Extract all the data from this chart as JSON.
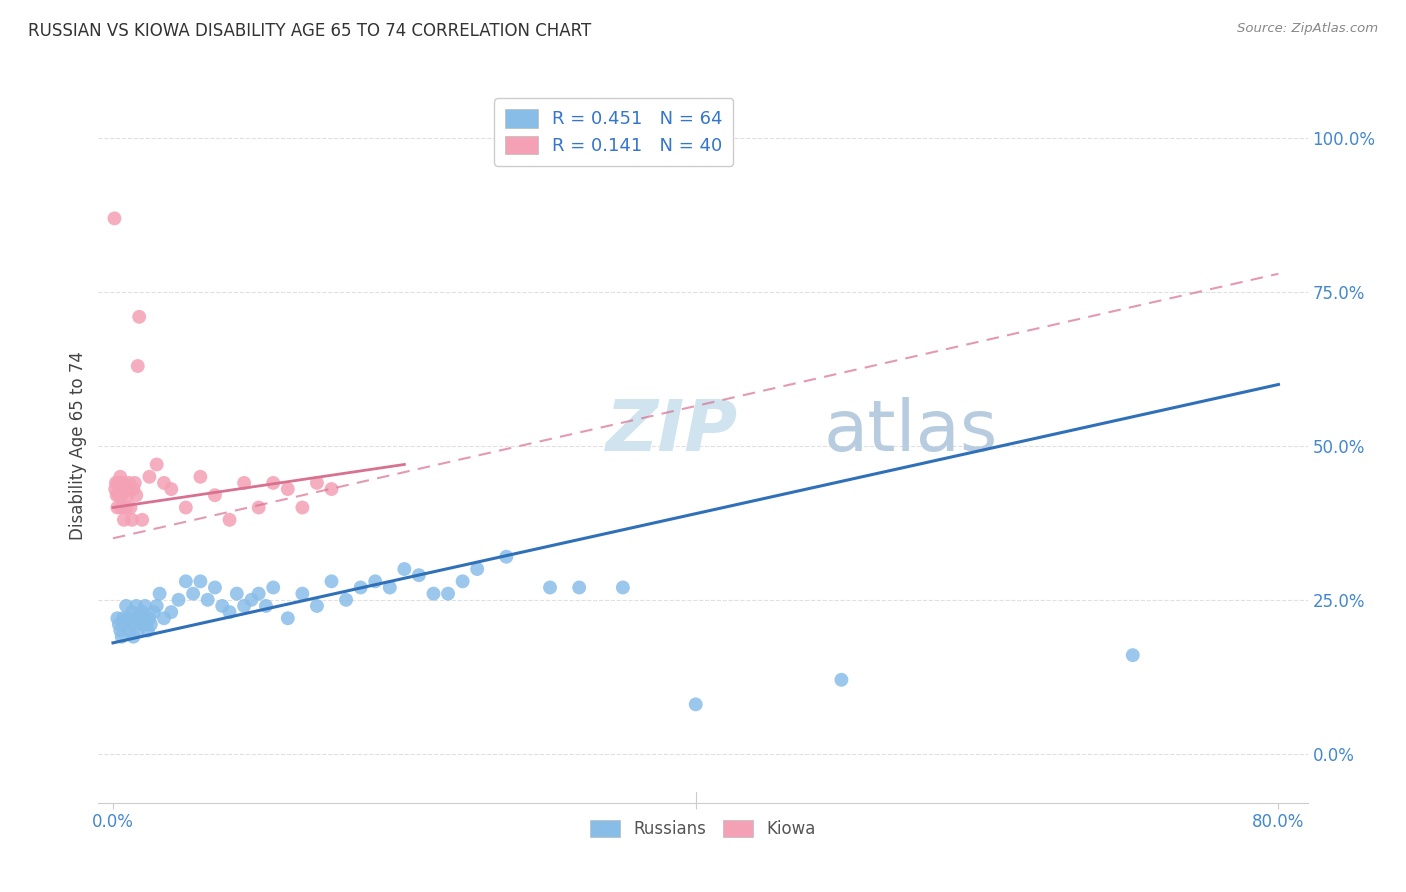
{
  "title": "RUSSIAN VS KIOWA DISABILITY AGE 65 TO 74 CORRELATION CHART",
  "source": "Source: ZipAtlas.com",
  "ylabel": "Disability Age 65 to 74",
  "ytick_values": [
    0,
    25,
    50,
    75,
    100
  ],
  "xlim": [
    -1,
    82
  ],
  "ylim": [
    -8,
    108
  ],
  "russian_R": 0.451,
  "russian_N": 64,
  "kiowa_R": 0.141,
  "kiowa_N": 40,
  "russian_color": "#88bde8",
  "kiowa_color": "#f4a0b5",
  "russian_line_color": "#3070b8",
  "kiowa_line_color": "#d87090",
  "legend_text_color": "#3575cc",
  "title_color": "#333333",
  "axis_label_color": "#4488cc",
  "grid_color": "#e0e0e0",
  "background_color": "#ffffff",
  "watermark_color": "#d0e4f0",
  "russians_x": [
    0.3,
    0.4,
    0.5,
    0.6,
    0.7,
    0.8,
    0.9,
    1.0,
    1.1,
    1.2,
    1.3,
    1.4,
    1.5,
    1.6,
    1.7,
    1.8,
    1.9,
    2.0,
    2.1,
    2.2,
    2.3,
    2.4,
    2.5,
    2.6,
    2.8,
    3.0,
    3.2,
    3.5,
    4.0,
    4.5,
    5.0,
    5.5,
    6.0,
    6.5,
    7.0,
    7.5,
    8.0,
    8.5,
    9.0,
    9.5,
    10.0,
    10.5,
    11.0,
    12.0,
    13.0,
    14.0,
    15.0,
    16.0,
    17.0,
    18.0,
    19.0,
    20.0,
    21.0,
    22.0,
    23.0,
    24.0,
    25.0,
    27.0,
    30.0,
    32.0,
    35.0,
    40.0,
    50.0,
    70.0
  ],
  "russians_y": [
    22,
    21,
    20,
    19,
    22,
    21,
    24,
    22,
    20,
    21,
    23,
    19,
    22,
    24,
    20,
    22,
    21,
    23,
    22,
    24,
    21,
    20,
    22,
    21,
    23,
    24,
    26,
    22,
    23,
    25,
    28,
    26,
    28,
    25,
    27,
    24,
    23,
    26,
    24,
    25,
    26,
    24,
    27,
    22,
    26,
    24,
    28,
    25,
    27,
    28,
    27,
    30,
    29,
    26,
    26,
    28,
    30,
    32,
    27,
    27,
    27,
    8,
    12,
    16
  ],
  "kiowas_x": [
    0.1,
    0.15,
    0.2,
    0.25,
    0.3,
    0.35,
    0.4,
    0.5,
    0.55,
    0.6,
    0.65,
    0.7,
    0.75,
    0.8,
    0.9,
    1.0,
    1.1,
    1.2,
    1.3,
    1.4,
    1.5,
    1.6,
    1.7,
    1.8,
    2.0,
    2.5,
    3.0,
    3.5,
    4.0,
    5.0,
    6.0,
    7.0,
    8.0,
    9.0,
    10.0,
    11.0,
    12.0,
    13.0,
    14.0,
    15.0
  ],
  "kiowas_y": [
    87,
    43,
    44,
    42,
    40,
    44,
    42,
    45,
    40,
    42,
    44,
    43,
    38,
    43,
    40,
    42,
    44,
    40,
    38,
    43,
    44,
    42,
    63,
    71,
    38,
    45,
    47,
    44,
    43,
    40,
    45,
    42,
    38,
    44,
    40,
    44,
    43,
    40,
    44,
    43
  ],
  "russian_line_x": [
    0,
    80
  ],
  "russian_line_y": [
    18,
    60
  ],
  "kiowa_solid_line_x": [
    0,
    20
  ],
  "kiowa_solid_line_y": [
    40,
    47
  ],
  "kiowa_dashed_line_x": [
    0,
    80
  ],
  "kiowa_dashed_line_y": [
    35,
    78
  ]
}
